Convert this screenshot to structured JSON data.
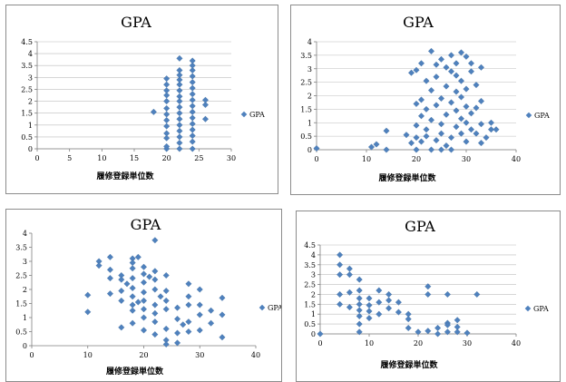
{
  "chart_data": [
    {
      "type": "scatter",
      "title": "GPA",
      "xlabel": "履修登録単位数",
      "ylabel": "",
      "xlim": [
        0,
        30
      ],
      "ylim": [
        0,
        4.5
      ],
      "xticks": [
        0,
        5,
        10,
        15,
        20,
        25,
        30
      ],
      "yticks": [
        0,
        0.5,
        1,
        1.5,
        2,
        2.5,
        3,
        3.5,
        4,
        4.5
      ],
      "grid": true,
      "legend": "right",
      "series": [
        {
          "name": "GPA",
          "color": "#4f81bd",
          "points": [
            [
              18,
              1.55
            ],
            [
              20,
              0.0
            ],
            [
              20,
              0.1
            ],
            [
              20,
              0.45
            ],
            [
              20,
              0.65
            ],
            [
              20,
              0.95
            ],
            [
              20,
              1.2
            ],
            [
              20,
              1.45
            ],
            [
              20,
              1.7
            ],
            [
              20,
              2.0
            ],
            [
              20,
              2.25
            ],
            [
              20,
              2.45
            ],
            [
              20,
              2.7
            ],
            [
              20,
              2.95
            ],
            [
              22,
              0.0
            ],
            [
              22,
              0.25
            ],
            [
              22,
              0.5
            ],
            [
              22,
              0.75
            ],
            [
              22,
              1.0
            ],
            [
              22,
              1.25
            ],
            [
              22,
              1.5
            ],
            [
              22,
              1.75
            ],
            [
              22,
              2.0
            ],
            [
              22,
              2.2
            ],
            [
              22,
              2.45
            ],
            [
              22,
              2.7
            ],
            [
              22,
              2.9
            ],
            [
              22,
              3.1
            ],
            [
              22,
              3.3
            ],
            [
              22,
              3.8
            ],
            [
              24,
              0.0
            ],
            [
              24,
              0.3
            ],
            [
              24,
              0.55
            ],
            [
              24,
              0.8
            ],
            [
              24,
              1.05
            ],
            [
              24,
              1.3
            ],
            [
              24,
              1.55
            ],
            [
              24,
              1.8
            ],
            [
              24,
              2.05
            ],
            [
              24,
              2.3
            ],
            [
              24,
              2.55
            ],
            [
              24,
              2.8
            ],
            [
              24,
              3.05
            ],
            [
              24,
              3.3
            ],
            [
              24,
              3.5
            ],
            [
              24,
              3.7
            ],
            [
              26,
              1.25
            ],
            [
              26,
              1.85
            ],
            [
              26,
              2.05
            ]
          ]
        }
      ]
    },
    {
      "type": "scatter",
      "title": "GPA",
      "xlabel": "履修登録単位数",
      "ylabel": "",
      "xlim": [
        0,
        40
      ],
      "ylim": [
        0,
        4
      ],
      "xticks": [
        0,
        10,
        20,
        30,
        40
      ],
      "yticks": [
        0,
        0.5,
        1,
        1.5,
        2,
        2.5,
        3,
        3.5,
        4
      ],
      "grid": true,
      "legend": "right",
      "series": [
        {
          "name": "GPA",
          "color": "#4f81bd",
          "points": [
            [
              0,
              0.05
            ],
            [
              11,
              0.1
            ],
            [
              12,
              0.2
            ],
            [
              14,
              0.0
            ],
            [
              14,
              0.7
            ],
            [
              18,
              0.55
            ],
            [
              19,
              0.25
            ],
            [
              19,
              2.85
            ],
            [
              20,
              0.0
            ],
            [
              20,
              0.45
            ],
            [
              20,
              0.9
            ],
            [
              20,
              1.7
            ],
            [
              20,
              2.95
            ],
            [
              21,
              0.3
            ],
            [
              21,
              1.25
            ],
            [
              21,
              1.85
            ],
            [
              21,
              3.2
            ],
            [
              22,
              0.5
            ],
            [
              22,
              0.75
            ],
            [
              22,
              1.5
            ],
            [
              22,
              2.55
            ],
            [
              23,
              0.0
            ],
            [
              23,
              1.1
            ],
            [
              23,
              2.2
            ],
            [
              23,
              3.65
            ],
            [
              24,
              0.35
            ],
            [
              24,
              1.65
            ],
            [
              24,
              2.7
            ],
            [
              24,
              3.15
            ],
            [
              25,
              0.0
            ],
            [
              25,
              0.6
            ],
            [
              25,
              0.95
            ],
            [
              25,
              1.9
            ],
            [
              25,
              3.35
            ],
            [
              26,
              0.15
            ],
            [
              26,
              1.3
            ],
            [
              26,
              2.35
            ],
            [
              26,
              3.05
            ],
            [
              27,
              0.0
            ],
            [
              27,
              0.45
            ],
            [
              27,
              1.75
            ],
            [
              27,
              2.9
            ],
            [
              27,
              3.5
            ],
            [
              28,
              0.85
            ],
            [
              28,
              1.45
            ],
            [
              28,
              2.15
            ],
            [
              28,
              2.75
            ],
            [
              28,
              3.2
            ],
            [
              29,
              0.6
            ],
            [
              29,
              1.15
            ],
            [
              29,
              1.95
            ],
            [
              29,
              2.55
            ],
            [
              29,
              3.6
            ],
            [
              30,
              0.3
            ],
            [
              30,
              1.0
            ],
            [
              30,
              1.6
            ],
            [
              30,
              2.25
            ],
            [
              30,
              3.45
            ],
            [
              31,
              0.75
            ],
            [
              31,
              1.35
            ],
            [
              31,
              2.9
            ],
            [
              31,
              3.2
            ],
            [
              32,
              0.6
            ],
            [
              32,
              1.55
            ],
            [
              32,
              2.4
            ],
            [
              33,
              0.25
            ],
            [
              33,
              0.95
            ],
            [
              33,
              1.8
            ],
            [
              33,
              3.05
            ],
            [
              34,
              0.45
            ],
            [
              35,
              0.75
            ],
            [
              35,
              1.0
            ],
            [
              36,
              0.75
            ]
          ]
        }
      ]
    },
    {
      "type": "scatter",
      "title": "GPA",
      "xlabel": "履修登録単位数",
      "ylabel": "",
      "xlim": [
        0,
        40
      ],
      "ylim": [
        0,
        4
      ],
      "xticks": [
        0,
        10,
        20,
        30,
        40
      ],
      "yticks": [
        0,
        0.5,
        1,
        1.5,
        2,
        2.5,
        3,
        3.5,
        4
      ],
      "grid": false,
      "legend": "right",
      "series": [
        {
          "name": "GPA",
          "color": "#4f81bd",
          "points": [
            [
              10,
              1.8
            ],
            [
              10,
              1.2
            ],
            [
              12,
              3.0
            ],
            [
              12,
              2.85
            ],
            [
              14,
              3.15
            ],
            [
              14,
              2.7
            ],
            [
              14,
              2.4
            ],
            [
              14,
              1.85
            ],
            [
              16,
              2.5
            ],
            [
              16,
              2.35
            ],
            [
              16,
              1.95
            ],
            [
              16,
              1.6
            ],
            [
              16,
              0.65
            ],
            [
              17,
              2.2
            ],
            [
              18,
              3.1
            ],
            [
              18,
              2.95
            ],
            [
              18,
              2.75
            ],
            [
              18,
              2.4
            ],
            [
              18,
              2.05
            ],
            [
              18,
              1.75
            ],
            [
              18,
              1.45
            ],
            [
              18,
              1.25
            ],
            [
              18,
              0.8
            ],
            [
              19,
              3.15
            ],
            [
              19,
              1.55
            ],
            [
              20,
              2.8
            ],
            [
              20,
              2.55
            ],
            [
              20,
              2.25
            ],
            [
              20,
              1.9
            ],
            [
              20,
              1.6
            ],
            [
              20,
              1.3
            ],
            [
              20,
              1.0
            ],
            [
              20,
              0.55
            ],
            [
              21,
              2.45
            ],
            [
              22,
              3.75
            ],
            [
              22,
              2.65
            ],
            [
              22,
              2.35
            ],
            [
              22,
              2.0
            ],
            [
              22,
              1.45
            ],
            [
              22,
              1.15
            ],
            [
              22,
              0.85
            ],
            [
              22,
              0.4
            ],
            [
              23,
              1.75
            ],
            [
              24,
              2.5
            ],
            [
              24,
              1.95
            ],
            [
              24,
              1.6
            ],
            [
              24,
              1.3
            ],
            [
              24,
              0.6
            ],
            [
              24,
              0.2
            ],
            [
              24,
              0.05
            ],
            [
              26,
              1.35
            ],
            [
              26,
              0.95
            ],
            [
              26,
              0.45
            ],
            [
              26,
              0.1
            ],
            [
              27,
              0.75
            ],
            [
              28,
              2.2
            ],
            [
              28,
              1.75
            ],
            [
              28,
              1.45
            ],
            [
              28,
              0.85
            ],
            [
              28,
              0.5
            ],
            [
              30,
              2.0
            ],
            [
              30,
              1.45
            ],
            [
              30,
              1.1
            ],
            [
              30,
              0.55
            ],
            [
              32,
              1.25
            ],
            [
              32,
              0.8
            ],
            [
              34,
              1.7
            ],
            [
              34,
              1.1
            ],
            [
              34,
              0.3
            ]
          ]
        }
      ]
    },
    {
      "type": "scatter",
      "title": "GPA",
      "xlabel": "履修登録単位数",
      "ylabel": "",
      "xlim": [
        0,
        40
      ],
      "ylim": [
        0,
        4.5
      ],
      "xticks": [
        0,
        10,
        20,
        30,
        40
      ],
      "yticks": [
        0,
        0.5,
        1,
        1.5,
        2,
        2.5,
        3,
        3.5,
        4,
        4.5
      ],
      "grid": true,
      "legend": "right",
      "series": [
        {
          "name": "GPA",
          "color": "#4f81bd",
          "points": [
            [
              0,
              0.0
            ],
            [
              4,
              4.0
            ],
            [
              4,
              3.5
            ],
            [
              4,
              3.0
            ],
            [
              4,
              2.0
            ],
            [
              4,
              1.5
            ],
            [
              6,
              3.3
            ],
            [
              6,
              3.0
            ],
            [
              6,
              2.1
            ],
            [
              6,
              1.35
            ],
            [
              8,
              2.75
            ],
            [
              8,
              2.2
            ],
            [
              8,
              1.8
            ],
            [
              8,
              1.5
            ],
            [
              8,
              1.2
            ],
            [
              8,
              0.9
            ],
            [
              8,
              0.5
            ],
            [
              8,
              0.1
            ],
            [
              10,
              1.8
            ],
            [
              10,
              1.45
            ],
            [
              10,
              1.15
            ],
            [
              10,
              0.8
            ],
            [
              12,
              2.2
            ],
            [
              12,
              1.6
            ],
            [
              12,
              1.0
            ],
            [
              14,
              2.0
            ],
            [
              14,
              1.7
            ],
            [
              14,
              1.3
            ],
            [
              16,
              1.6
            ],
            [
              16,
              1.1
            ],
            [
              18,
              1.0
            ],
            [
              18,
              0.75
            ],
            [
              18,
              0.3
            ],
            [
              20,
              0.1
            ],
            [
              22,
              2.4
            ],
            [
              22,
              2.0
            ],
            [
              22,
              0.15
            ],
            [
              24,
              0.3
            ],
            [
              24,
              0.0
            ],
            [
              26,
              2.0
            ],
            [
              26,
              0.55
            ],
            [
              26,
              0.45
            ],
            [
              26,
              0.1
            ],
            [
              28,
              0.7
            ],
            [
              28,
              0.35
            ],
            [
              28,
              0.1
            ],
            [
              30,
              0.05
            ],
            [
              32,
              2.0
            ]
          ]
        }
      ]
    }
  ]
}
